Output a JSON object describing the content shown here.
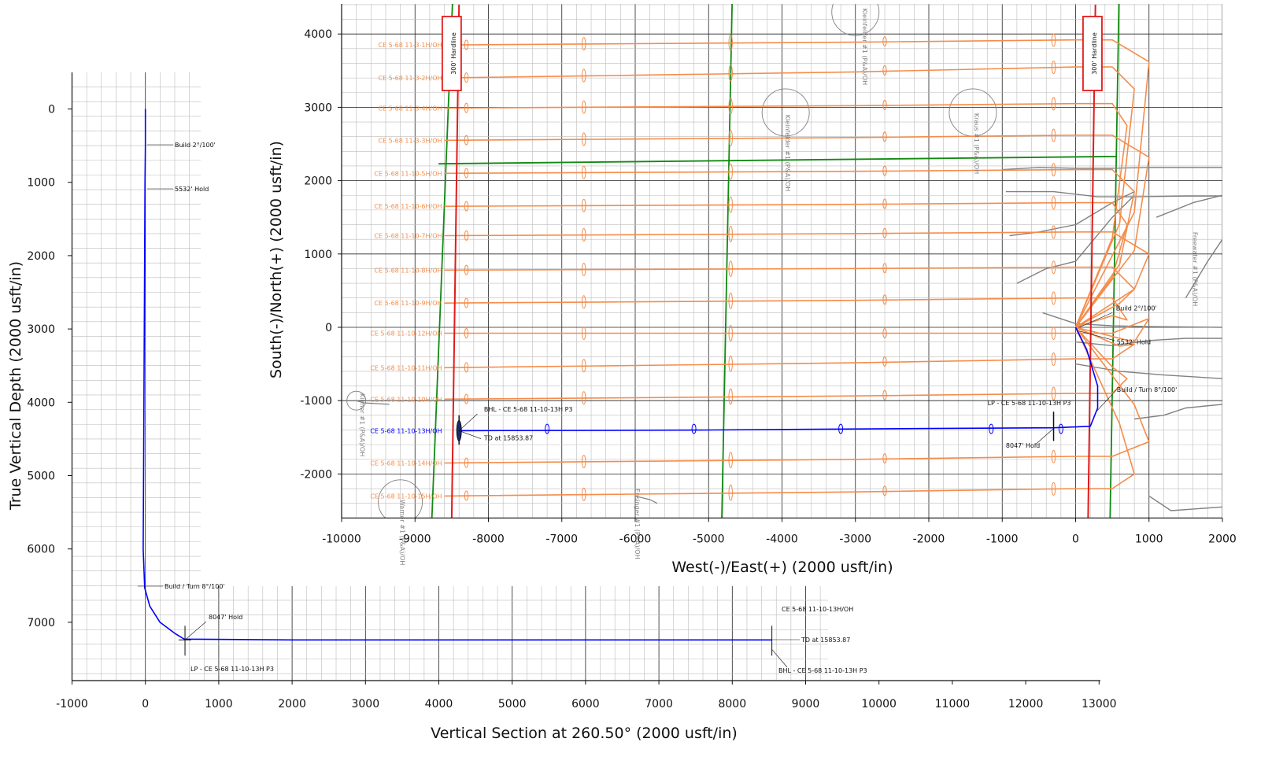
{
  "chart_data": [
    {
      "type": "line",
      "xlabel": "Vertical Section at 260.50° (2000 usft/in)",
      "ylabel": "True Vertical Depth (2000 usft/in)",
      "xlim": [
        -1000,
        13000
      ],
      "ylim": [
        7800,
        -500
      ],
      "y_inverted": true,
      "grid": true,
      "xticks": [
        "-1000",
        "0",
        "1000",
        "2000",
        "3000",
        "4000",
        "5000",
        "6000",
        "7000",
        "8000",
        "9000",
        "10000",
        "11000",
        "12000",
        "13000"
      ],
      "yticks": [
        "0",
        "1000",
        "2000",
        "3000",
        "4000",
        "5000",
        "6000",
        "7000"
      ],
      "series": [
        {
          "name": "CE 5-68 11-10-13H/OH",
          "color": "#0000ff",
          "x": [
            0,
            0,
            -5,
            -15,
            -25,
            -30,
            -10,
            60,
            200,
            400,
            530,
            2000,
            5000,
            8000,
            8540
          ],
          "y": [
            0,
            500,
            1000,
            3000,
            5000,
            6000,
            6530,
            6780,
            7000,
            7150,
            7230,
            7240,
            7240,
            7240,
            7240
          ]
        }
      ],
      "annotations": [
        {
          "label": "Build  2°/100'",
          "x": 0,
          "y": 500
        },
        {
          "label": "5532' Hold",
          "x": 0,
          "y": 1100
        },
        {
          "label": "Build / Turn  8°/100'",
          "x": -50,
          "y": 6530
        },
        {
          "label": "8047' Hold",
          "x": 540,
          "y": 7240
        },
        {
          "label": "LP - CE 5-68 11-10-13H P3",
          "x": 540,
          "y": 7240
        },
        {
          "label": "CE 5-68 11-10-13H/OH",
          "x": 8540,
          "y": 7240
        },
        {
          "label": "TD at 15853.87",
          "x": 8540,
          "y": 7240
        },
        {
          "label": "BHL - CE 5-68 11-10-13H P3",
          "x": 8540,
          "y": 7240
        }
      ]
    },
    {
      "type": "line",
      "xlabel": "West(-)/East(+) (2000 usft/in)",
      "ylabel": "South(-)/North(+) (2000 usft/in)",
      "xlim": [
        -10000,
        2000
      ],
      "ylim": [
        -2600,
        4400
      ],
      "grid": true,
      "xticks": [
        "-10000",
        "-9000",
        "-8000",
        "-7000",
        "-6000",
        "-5000",
        "-4000",
        "-3000",
        "-2000",
        "-1000",
        "0",
        "1000",
        "2000"
      ],
      "yticks": [
        "-2000",
        "-1000",
        "0",
        "1000",
        "2000",
        "3000",
        "4000"
      ],
      "hardlines": [
        {
          "label": "300' Hardline",
          "x": [
            -8500,
            -8400
          ],
          "y": [
            -2600,
            4400
          ]
        },
        {
          "label": "300' Hardline",
          "x": [
            170,
            270
          ],
          "y": [
            -2600,
            4400
          ]
        }
      ],
      "plan_wells": [
        {
          "name": "CE 5-68 11-3-1H/OH",
          "y_west": 3850,
          "y_east": 3920
        },
        {
          "name": "CE 5-68 11-3-2H/OH",
          "y_west": 3400,
          "y_east": 3550
        },
        {
          "name": "CE 5-68 11-3-4H/OH",
          "y_west": 2990,
          "y_east": 3050
        },
        {
          "name": "CE 5-68 11-3-3H/OH",
          "y_west": 2550,
          "y_east": 2620
        },
        {
          "name": "CE 5-68 11-10-5H/OH",
          "y_west": 2100,
          "y_east": 2150
        },
        {
          "name": "CE 5-68 11-10-6H/OH",
          "y_west": 1650,
          "y_east": 1700
        },
        {
          "name": "CE 5-68 11-10-7H/OH",
          "y_west": 1250,
          "y_east": 1300
        },
        {
          "name": "CE 5-68 11-10-8H/OH",
          "y_west": 780,
          "y_east": 820
        },
        {
          "name": "CE 5-68 11-10-9H/OH",
          "y_west": 330,
          "y_east": 400
        },
        {
          "name": "CE 5-68 11-10-12H/OH",
          "y_west": -80,
          "y_east": -80
        },
        {
          "name": "CE 5-68 11-10-11H/OH",
          "y_west": -550,
          "y_east": -430
        },
        {
          "name": "CE 5-68 11-10-10H/OH",
          "y_west": -980,
          "y_east": -900
        },
        {
          "name": "CE 5-68 11-10-14H/OH",
          "y_west": -1850,
          "y_east": -1760
        },
        {
          "name": "CE 5-68 11-10-15H/OH",
          "y_west": -2300,
          "y_east": -2200
        }
      ],
      "series": [
        {
          "name": "CE 5-68 11-10-13H/OH",
          "color": "#0000ff",
          "x": [
            0,
            150,
            300,
            300,
            200,
            -300,
            -2000,
            -5000,
            -8400
          ],
          "y": [
            0,
            -300,
            -800,
            -1100,
            -1350,
            -1370,
            -1380,
            -1400,
            -1410
          ]
        }
      ],
      "annotations": [
        {
          "label": "Build  2°/100'"
        },
        {
          "label": "5532' Hold"
        },
        {
          "label": "Build / Turn  8°/100'"
        },
        {
          "label": "LP - CE 5-68 11-10-13H P3"
        },
        {
          "label": "8047' Hold"
        },
        {
          "label": "BHL - CE 5-68 11-10-13H P3"
        },
        {
          "label": "TD at 15853.87"
        }
      ],
      "offset_well_labels": [
        "Kleinfelder #1 (P&A)/OH",
        "Kleinfelder #1 (P&A)/OH",
        "Kraus #1 (P&A)/OH",
        "Kilmer #1 (P&A)/OH",
        "Warner #1 (P&A)/OH",
        "Ensinger #1 (P&A)/OH",
        "Freewater #1 (P&A)/OH"
      ]
    }
  ]
}
